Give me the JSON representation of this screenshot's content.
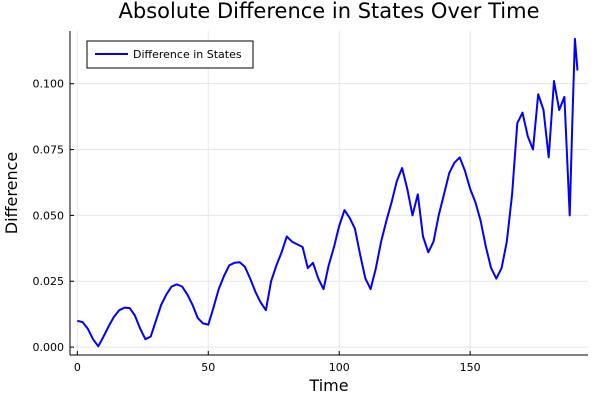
{
  "chart_data": {
    "type": "line",
    "title": "Absolute Difference in States Over Time",
    "xlabel": "Time",
    "ylabel": "Difference",
    "xlim": [
      -2.8,
      195
    ],
    "ylim": [
      -0.003,
      0.12
    ],
    "xticks": [
      0,
      50,
      100,
      150
    ],
    "yticks": [
      0.0,
      0.025,
      0.05,
      0.075,
      0.1
    ],
    "xtick_labels": [
      "0",
      "50",
      "100",
      "150"
    ],
    "ytick_labels": [
      "0.000",
      "0.025",
      "0.050",
      "0.075",
      "0.100"
    ],
    "grid": true,
    "legend": {
      "position": "top-left"
    },
    "series": [
      {
        "name": "Difference in States",
        "color": "#0000ff",
        "x": [
          0,
          2,
          4,
          6,
          8,
          10,
          12,
          14,
          16,
          18,
          20,
          22,
          24,
          26,
          28,
          30,
          32,
          34,
          36,
          38,
          40,
          42,
          44,
          46,
          48,
          50,
          52,
          54,
          56,
          58,
          60,
          62,
          64,
          66,
          68,
          70,
          72,
          74,
          76,
          78,
          80,
          82,
          84,
          86,
          88,
          90,
          92,
          94,
          96,
          98,
          100,
          102,
          104,
          106,
          108,
          110,
          112,
          114,
          116,
          118,
          120,
          122,
          124,
          126,
          128,
          130,
          132,
          134,
          136,
          138,
          140,
          142,
          144,
          146,
          148,
          150,
          152,
          154,
          156,
          158,
          160,
          162,
          164,
          166,
          168,
          170,
          172,
          174,
          176,
          178,
          180,
          182,
          184,
          186,
          188,
          189,
          190,
          191
        ],
        "y": [
          0.01,
          0.0095,
          0.007,
          0.003,
          0.0003,
          0.004,
          0.008,
          0.0115,
          0.014,
          0.015,
          0.0148,
          0.012,
          0.007,
          0.003,
          0.004,
          0.01,
          0.016,
          0.02,
          0.023,
          0.0238,
          0.023,
          0.02,
          0.016,
          0.011,
          0.009,
          0.0085,
          0.015,
          0.022,
          0.027,
          0.031,
          0.032,
          0.0322,
          0.0305,
          0.026,
          0.021,
          0.017,
          0.014,
          0.025,
          0.031,
          0.036,
          0.042,
          0.04,
          0.039,
          0.038,
          0.03,
          0.032,
          0.026,
          0.022,
          0.031,
          0.038,
          0.046,
          0.052,
          0.049,
          0.045,
          0.035,
          0.026,
          0.022,
          0.03,
          0.04,
          0.048,
          0.055,
          0.063,
          0.068,
          0.06,
          0.05,
          0.058,
          0.042,
          0.036,
          0.04,
          0.05,
          0.058,
          0.066,
          0.07,
          0.072,
          0.067,
          0.06,
          0.055,
          0.048,
          0.038,
          0.03,
          0.026,
          0.03,
          0.04,
          0.058,
          0.085,
          0.089,
          0.08,
          0.075,
          0.096,
          0.09,
          0.072,
          0.101,
          0.09,
          0.095,
          0.05,
          0.085,
          0.117,
          0.105
        ]
      }
    ]
  }
}
